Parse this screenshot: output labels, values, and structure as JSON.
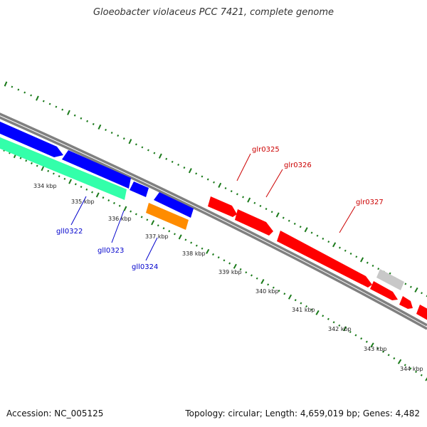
{
  "title": "Gloeobacter violaceus PCC 7421, complete genome",
  "footer": {
    "accession": "Accession: NC_005125",
    "summary": "Topology: circular; Length: 4,659,019 bp; Genes: 4,482"
  },
  "colors": {
    "backbone": "#808080",
    "tick": "#1a7a1a",
    "forward_gene": "#ff0000",
    "reverse_gene": "#0000ff",
    "rna_gene": "#33ffaa",
    "orange_gene": "#ff8c00",
    "gray_gene": "#c8c8c8"
  },
  "ruler": {
    "kbp_labels": [
      "334 kbp",
      "335 kbp",
      "336 kbp",
      "337 kbp",
      "338 kbp",
      "339 kbp",
      "340 kbp",
      "341 kbp",
      "342 kbp",
      "343 kbp",
      "344 kbp"
    ]
  },
  "gene_labels": {
    "gll0322": "gll0322",
    "gll0323": "gll0323",
    "gll0324": "gll0324",
    "glr0325": "glr0325",
    "glr0326": "glr0326",
    "glr0327": "glr0327"
  }
}
